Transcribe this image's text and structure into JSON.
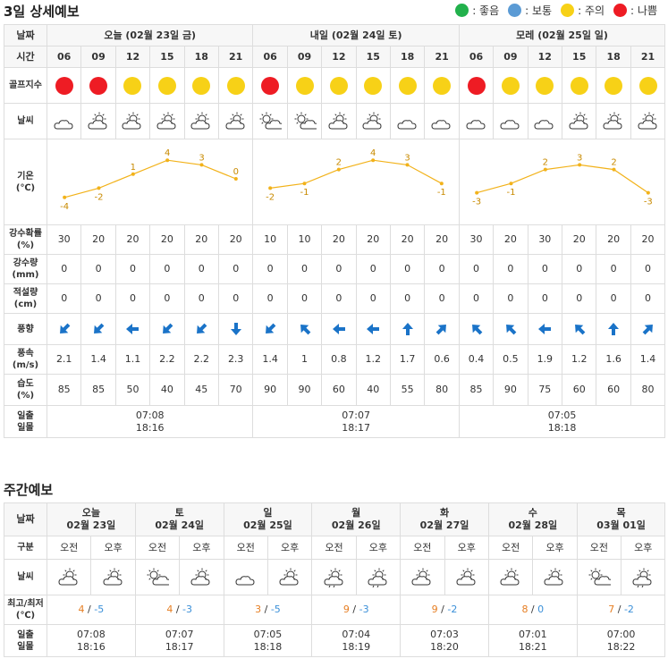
{
  "section1_title": "3일 상세예보",
  "legend": [
    {
      "color": "#22b14c",
      "label": ": 좋음"
    },
    {
      "color": "#5b9bd5",
      "label": ": 보통"
    },
    {
      "color": "#f7d117",
      "label": ": 주의"
    },
    {
      "color": "#ee1c24",
      "label": ": 나쁨"
    }
  ],
  "labels": {
    "date": "날짜",
    "time": "시간",
    "golf": "골프지수",
    "weather": "날씨",
    "temp1": "기온",
    "temp2": "(℃)",
    "rainprob1": "강수확률",
    "rainprob2": "(%)",
    "rain1": "강수량",
    "rain2": "(mm)",
    "snow1": "적설량",
    "snow2": "(cm)",
    "winddir": "풍향",
    "windspd1": "풍속",
    "windspd2": "(m/s)",
    "humid1": "습도",
    "humid2": "(%)",
    "sun1": "일출",
    "sun2": "일몰"
  },
  "days": [
    {
      "title": "오늘 (02월 23일 금)",
      "times": [
        "06",
        "09",
        "12",
        "15",
        "18",
        "21"
      ],
      "golf": [
        "bad",
        "bad",
        "caution",
        "caution",
        "caution",
        "caution"
      ],
      "weather": [
        "cloudy-icon",
        "sun-cloud-icon",
        "sun-cloud-icon",
        "sun-cloud-icon",
        "sun-cloud-icon",
        "sun-cloud-icon"
      ],
      "temps": [
        "-4",
        "-2",
        "1",
        "4",
        "3",
        "0"
      ],
      "rainprob": [
        "30",
        "20",
        "20",
        "20",
        "20",
        "20"
      ],
      "rain": [
        "0",
        "0",
        "0",
        "0",
        "0",
        "0"
      ],
      "snow": [
        "0",
        "0",
        "0",
        "0",
        "0",
        "0"
      ],
      "winddir": [
        225,
        225,
        270,
        225,
        225,
        180
      ],
      "windspd": [
        "2.1",
        "1.4",
        "1.1",
        "2.2",
        "2.2",
        "2.3"
      ],
      "humid": [
        "85",
        "85",
        "50",
        "40",
        "45",
        "70"
      ],
      "sunrise": "07:08",
      "sunset": "18:16"
    },
    {
      "title": "내일 (02월 24일 토)",
      "times": [
        "06",
        "09",
        "12",
        "15",
        "18",
        "21"
      ],
      "golf": [
        "bad",
        "caution",
        "caution",
        "caution",
        "caution",
        "caution"
      ],
      "weather": [
        "sun-partly-icon",
        "sun-partly-icon",
        "sun-cloud-icon",
        "sun-cloud-icon",
        "cloudy-icon",
        "cloudy-icon"
      ],
      "temps": [
        "-2",
        "-1",
        "2",
        "4",
        "3",
        "-1"
      ],
      "rainprob": [
        "10",
        "10",
        "20",
        "20",
        "20",
        "20"
      ],
      "rain": [
        "0",
        "0",
        "0",
        "0",
        "0",
        "0"
      ],
      "snow": [
        "0",
        "0",
        "0",
        "0",
        "0",
        "0"
      ],
      "winddir": [
        225,
        315,
        270,
        270,
        0,
        45
      ],
      "windspd": [
        "1.4",
        "1",
        "0.8",
        "1.2",
        "1.7",
        "0.6"
      ],
      "humid": [
        "90",
        "90",
        "60",
        "40",
        "55",
        "80"
      ],
      "sunrise": "07:07",
      "sunset": "18:17"
    },
    {
      "title": "모레 (02월 25일 일)",
      "times": [
        "06",
        "09",
        "12",
        "15",
        "18",
        "21"
      ],
      "golf": [
        "bad",
        "caution",
        "caution",
        "caution",
        "caution",
        "caution"
      ],
      "weather": [
        "cloudy-icon",
        "cloudy-icon",
        "cloudy-icon",
        "sun-cloud-icon",
        "sun-cloud-icon",
        "sun-cloud-icon"
      ],
      "temps": [
        "-3",
        "-1",
        "2",
        "3",
        "2",
        "-3"
      ],
      "rainprob": [
        "30",
        "20",
        "30",
        "20",
        "20",
        "20"
      ],
      "rain": [
        "0",
        "0",
        "0",
        "0",
        "0",
        "0"
      ],
      "snow": [
        "0",
        "0",
        "0",
        "0",
        "0",
        "0"
      ],
      "winddir": [
        315,
        315,
        270,
        315,
        0,
        45
      ],
      "windspd": [
        "0.4",
        "0.5",
        "1.9",
        "1.2",
        "1.6",
        "1.4"
      ],
      "humid": [
        "85",
        "90",
        "75",
        "60",
        "60",
        "80"
      ],
      "sunrise": "07:05",
      "sunset": "18:18"
    }
  ],
  "section2_title": "주간예보",
  "weekly_labels": {
    "date": "날짜",
    "ampm": "구분",
    "weather": "날씨",
    "minmax1": "최고/최저",
    "minmax2": "(℃)",
    "sun1": "일출",
    "sun2": "일몰",
    "am": "오전",
    "pm": "오후",
    "sep": " / "
  },
  "weekly": [
    {
      "day": "오늘",
      "date": "02월 23일",
      "am_icon": "sun-cloud-icon",
      "pm_icon": "sun-cloud-icon",
      "hi": "4",
      "lo": "-5",
      "sunrise": "07:08",
      "sunset": "18:16"
    },
    {
      "day": "토",
      "date": "02월 24일",
      "am_icon": "sun-partly-icon",
      "pm_icon": "sun-cloud-icon",
      "hi": "4",
      "lo": "-3",
      "sunrise": "07:07",
      "sunset": "18:17"
    },
    {
      "day": "일",
      "date": "02월 25일",
      "am_icon": "cloudy-icon",
      "pm_icon": "sun-cloud-icon",
      "hi": "3",
      "lo": "-5",
      "sunrise": "07:05",
      "sunset": "18:18"
    },
    {
      "day": "월",
      "date": "02월 26일",
      "am_icon": "sun-rain-icon",
      "pm_icon": "sun-rain-icon",
      "hi": "9",
      "lo": "-3",
      "sunrise": "07:04",
      "sunset": "18:19"
    },
    {
      "day": "화",
      "date": "02월 27일",
      "am_icon": "sun-cloud-icon",
      "pm_icon": "sun-cloud-icon",
      "hi": "9",
      "lo": "-2",
      "sunrise": "07:03",
      "sunset": "18:20"
    },
    {
      "day": "수",
      "date": "02월 28일",
      "am_icon": "sun-cloud-icon",
      "pm_icon": "sun-cloud-icon",
      "hi": "8",
      "lo": "0",
      "sunrise": "07:01",
      "sunset": "18:21"
    },
    {
      "day": "목",
      "date": "03월 01일",
      "am_icon": "sun-partly-icon",
      "pm_icon": "sun-rain-icon",
      "hi": "7",
      "lo": "-2",
      "sunrise": "07:00",
      "sunset": "18:22"
    }
  ],
  "colors": {
    "good": "#22b14c",
    "normal": "#5b9bd5",
    "caution": "#f7d117",
    "bad": "#ee1c24",
    "line": "#f2b21a",
    "arrow": "#1a73c8"
  }
}
